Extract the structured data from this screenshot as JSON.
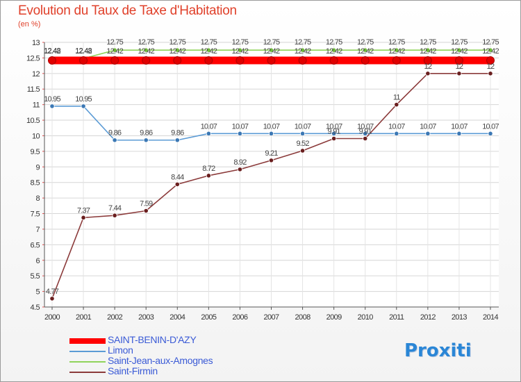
{
  "chart_data": {
    "type": "line",
    "title": "Evolution du Taux de Taxe d'Habitation",
    "ylabel": "(en %)",
    "xlabel": "",
    "categories": [
      "2000",
      "2001",
      "2002",
      "2003",
      "2004",
      "2005",
      "2006",
      "2007",
      "2008",
      "2009",
      "2010",
      "2011",
      "2012",
      "2013",
      "2014"
    ],
    "ylim": [
      4.5,
      13
    ],
    "yticks": [
      "4.5",
      "5",
      "5.5",
      "6",
      "6.5",
      "7",
      "7.5",
      "8",
      "8.5",
      "9",
      "9.5",
      "10",
      "10.5",
      "11",
      "11.5",
      "12",
      "12.5",
      "13"
    ],
    "series": [
      {
        "name": "SAINT-BENIN-D'AZY",
        "color": "#ff0000",
        "marker": "#e00000",
        "values": [
          12.42,
          12.42,
          12.42,
          12.42,
          12.42,
          12.42,
          12.42,
          12.42,
          12.42,
          12.42,
          12.42,
          12.42,
          12.42,
          12.42,
          12.42
        ],
        "labels": [
          "12.42",
          "12.42",
          "12.42",
          "12.42",
          "12.42",
          "12.42",
          "12.42",
          "12.42",
          "12.42",
          "12.42",
          "12.42",
          "12.42",
          "12.42",
          "12.42",
          "12.42"
        ]
      },
      {
        "name": "Limon",
        "color": "#5b9bd5",
        "marker": "#3c78b4",
        "values": [
          10.95,
          10.95,
          9.86,
          9.86,
          9.86,
          10.07,
          10.07,
          10.07,
          10.07,
          10.07,
          10.07,
          10.07,
          10.07,
          10.07,
          10.07
        ],
        "labels": [
          "10.95",
          "10.95",
          "9.86",
          "9.86",
          "9.86",
          "10.07",
          "10.07",
          "10.07",
          "10.07",
          "10.07",
          "10.07",
          "10.07",
          "10.07",
          "10.07",
          "10.07"
        ]
      },
      {
        "name": "Saint-Jean-aux-Amognes",
        "color": "#8fd35a",
        "marker": "#6fbb3a",
        "values": [
          12.48,
          12.48,
          12.75,
          12.75,
          12.75,
          12.75,
          12.75,
          12.75,
          12.75,
          12.75,
          12.75,
          12.75,
          12.75,
          12.75,
          12.75
        ],
        "labels": [
          "12.48",
          "12.48",
          "12.75",
          "12.75",
          "12.75",
          "12.75",
          "12.75",
          "12.75",
          "12.75",
          "12.75",
          "12.75",
          "12.75",
          "12.75",
          "12.75",
          "12.75"
        ]
      },
      {
        "name": "Saint-Firmin",
        "color": "#8b3a3a",
        "marker": "#6a1f1f",
        "values": [
          4.77,
          7.37,
          7.44,
          7.59,
          8.44,
          8.72,
          8.92,
          9.21,
          9.52,
          9.91,
          9.91,
          11,
          12,
          12,
          12
        ],
        "labels": [
          "4.77",
          "7.37",
          "7.44",
          "7.59",
          "8.44",
          "8.72",
          "8.92",
          "9.21",
          "9.52",
          "9.91",
          "9.91",
          "11",
          "12",
          "12",
          "12"
        ]
      }
    ],
    "grid": true,
    "legend_position": "bottom-left"
  },
  "brand": "Proxiti"
}
